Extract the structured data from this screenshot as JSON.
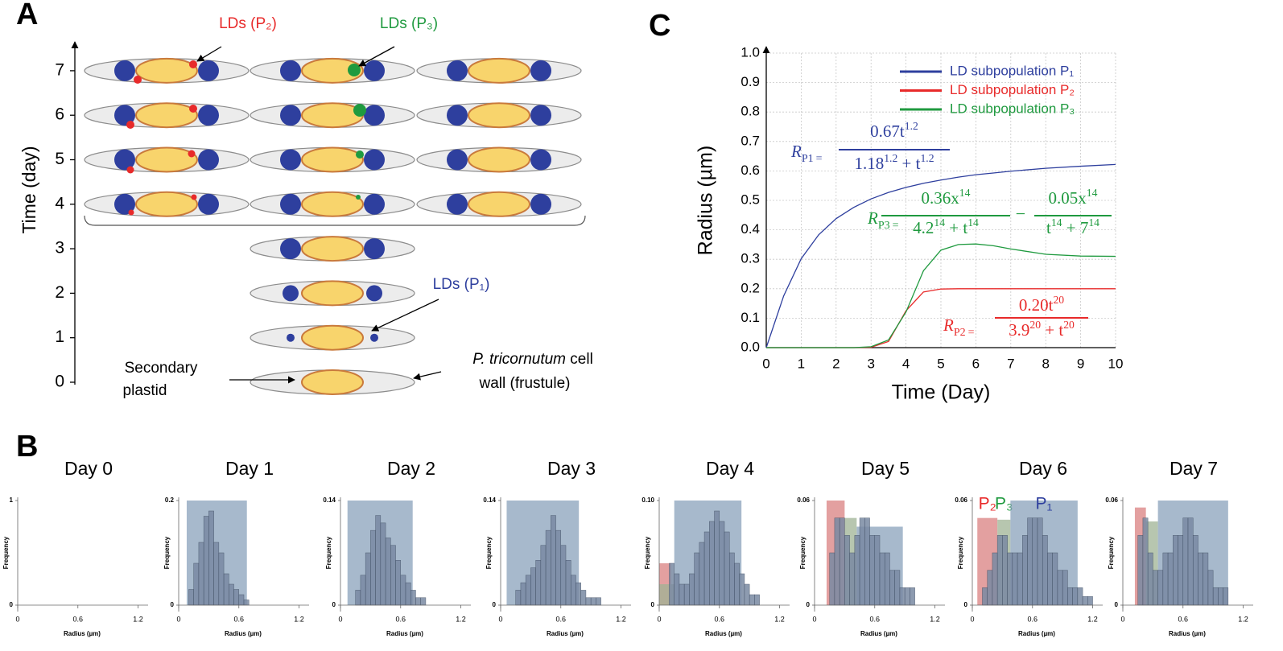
{
  "figure": {
    "panel_labels": [
      "A",
      "B",
      "C"
    ],
    "diagram": {
      "ylabel": "Time (day)",
      "yticks": [
        0,
        1,
        2,
        3,
        4,
        5,
        6,
        7
      ],
      "ld_p2": "LDs (P₂)",
      "ld_p3": "LDs (P₃)",
      "ld_p1": "LDs (P₁)",
      "plastid": [
        "Secondary",
        "plastid"
      ],
      "wall": [
        {
          "italic": "P. tricornutum",
          "text": " cell"
        },
        "wall (frustule)"
      ]
    }
  },
  "chart_data": [
    {
      "type": "line",
      "xlabel": "Time (Day)",
      "ylabel": "Radius (µm)",
      "x": [
        0,
        0.5,
        1,
        1.5,
        2,
        2.5,
        3,
        3.5,
        4,
        4.5,
        5,
        5.5,
        6,
        6.5,
        7,
        8,
        9,
        10
      ],
      "series": [
        {
          "name": "LD subpopulation P₁",
          "color": "#2e3f9e",
          "values": [
            0,
            0.176,
            0.302,
            0.383,
            0.438,
            0.476,
            0.505,
            0.527,
            0.544,
            0.558,
            0.569,
            0.579,
            0.587,
            0.593,
            0.599,
            0.609,
            0.616,
            0.622
          ]
        },
        {
          "name": "LD subpopulation P₂",
          "color": "#e82a2a",
          "values": [
            0,
            0,
            0,
            0,
            0,
            0,
            0.001,
            0.021,
            0.125,
            0.189,
            0.199,
            0.2,
            0.2,
            0.2,
            0.2,
            0.2,
            0.2,
            0.2
          ]
        },
        {
          "name": "LD subpopulation P₃",
          "color": "#1f9a3f",
          "values": [
            0,
            0,
            0,
            0,
            0,
            0,
            0.003,
            0.026,
            0.121,
            0.261,
            0.331,
            0.35,
            0.352,
            0.346,
            0.335,
            0.317,
            0.311,
            0.31
          ]
        }
      ],
      "xlim": [
        0,
        10
      ],
      "ylim": [
        0,
        1
      ],
      "xticks": [
        0,
        1,
        2,
        3,
        4,
        5,
        6,
        7,
        8,
        9,
        10
      ],
      "yticks": [
        {
          "value": 0,
          "label": "0.0"
        },
        0.1,
        0.2,
        0.3,
        0.4,
        0.5,
        0.6,
        0.7,
        0.8,
        0.9,
        {
          "value": 1,
          "label": "1.0"
        }
      ],
      "grid": true,
      "legend": "upper right",
      "annotations": [
        {
          "lhs": "R",
          "sub": "P1",
          "eq": "=",
          "color": "#2e3f9e",
          "fractions": [
            {
              "num": [
                {
                  "text": "0.67t"
                },
                {
                  "sup": "1.2"
                }
              ],
              "den": [
                {
                  "text": "1.18"
                },
                {
                  "sup": "1.2"
                },
                {
                  "text": " + t"
                },
                {
                  "sup": "1.2"
                }
              ]
            }
          ]
        },
        {
          "lhs": "R",
          "sub": "P2",
          "eq": "=",
          "color": "#e82a2a",
          "fractions": [
            {
              "num": [
                {
                  "text": "0.20t"
                },
                {
                  "sup": "20"
                }
              ],
              "den": [
                {
                  "text": "3.9"
                },
                {
                  "sup": "20"
                },
                {
                  "text": " + t"
                },
                {
                  "sup": "20"
                }
              ]
            }
          ]
        },
        {
          "lhs": "R",
          "sub": "P3",
          "eq": "=",
          "color": "#1f9a3f",
          "operator": "−",
          "fractions": [
            {
              "num": [
                {
                  "text": "0.36x"
                },
                {
                  "sup": "14"
                }
              ],
              "den": [
                {
                  "text": "4.2"
                },
                {
                  "sup": "14"
                },
                {
                  "text": " + t"
                },
                {
                  "sup": "14"
                }
              ]
            },
            {
              "num": [
                {
                  "text": "0.05x"
                },
                {
                  "sup": "14"
                }
              ],
              "den": [
                {
                  "text": "t"
                },
                {
                  "sup": "14"
                },
                {
                  "text": " + 7"
                },
                {
                  "sup": "14"
                }
              ]
            }
          ]
        }
      ]
    },
    {
      "type": "histogram",
      "title": "Day 0",
      "xlabel": "Radius (µm)",
      "ylabel": "Frequency",
      "color": "#7a8aa3",
      "xlim": [
        0,
        1.3
      ],
      "ylim": [
        0,
        1
      ],
      "xticks": [
        0,
        0.6,
        1.2
      ],
      "yticks": [
        0,
        1
      ]
    },
    {
      "type": "histogram",
      "title": "Day 1",
      "xlabel": "Radius (µm)",
      "ylabel": "Frequency",
      "color": "#7a8aa3",
      "bins": [
        0.1,
        0.15,
        0.2,
        0.25,
        0.3,
        0.35,
        0.4,
        0.45,
        0.5,
        0.55,
        0.6,
        0.65,
        0.7
      ],
      "values": [
        0.03,
        0.08,
        0.12,
        0.17,
        0.18,
        0.12,
        0.1,
        0.06,
        0.04,
        0.03,
        0.02,
        0.01
      ],
      "xlim": [
        0,
        1.3
      ],
      "ylim": [
        0,
        0.2
      ],
      "xticks": [
        0,
        0.6,
        1.2
      ],
      "yticks": [
        0,
        0.2
      ],
      "regions": [
        {
          "color": "#8aa1bb",
          "range": [
            0.08,
            0.68
          ],
          "top": 0.2
        }
      ]
    },
    {
      "type": "histogram",
      "title": "Day 2",
      "xlabel": "Radius (µm)",
      "ylabel": "Frequency",
      "color": "#7a8aa3",
      "bins": [
        0.15,
        0.2,
        0.25,
        0.3,
        0.35,
        0.4,
        0.45,
        0.5,
        0.55,
        0.6,
        0.65,
        0.7,
        0.75,
        0.8,
        0.85
      ],
      "values": [
        0.02,
        0.04,
        0.07,
        0.1,
        0.12,
        0.11,
        0.09,
        0.08,
        0.06,
        0.04,
        0.03,
        0.02,
        0.01,
        0.01
      ],
      "xlim": [
        0,
        1.3
      ],
      "ylim": [
        0,
        0.14
      ],
      "xticks": [
        0,
        0.6,
        1.2
      ],
      "yticks": [
        0,
        0.14
      ],
      "regions": [
        {
          "color": "#8aa1bb",
          "range": [
            0.07,
            0.72
          ],
          "top": 0.14
        }
      ]
    },
    {
      "type": "histogram",
      "title": "Day 3",
      "xlabel": "Radius (µm)",
      "ylabel": "Frequency",
      "color": "#7a8aa3",
      "bins": [
        0.15,
        0.2,
        0.25,
        0.3,
        0.35,
        0.4,
        0.45,
        0.5,
        0.55,
        0.6,
        0.65,
        0.7,
        0.75,
        0.8,
        0.85,
        0.9,
        0.95,
        1.0
      ],
      "values": [
        0.02,
        0.03,
        0.04,
        0.05,
        0.06,
        0.08,
        0.1,
        0.12,
        0.1,
        0.08,
        0.06,
        0.04,
        0.03,
        0.02,
        0.01,
        0.01,
        0.01
      ],
      "xlim": [
        0,
        1.3
      ],
      "ylim": [
        0,
        0.14
      ],
      "xticks": [
        0,
        0.6,
        1.2
      ],
      "yticks": [
        0,
        0.14
      ],
      "regions": [
        {
          "color": "#8aa1bb",
          "range": [
            0.06,
            0.78
          ],
          "top": 0.14
        }
      ]
    },
    {
      "type": "histogram",
      "title": "Day 4",
      "xlabel": "Radius (µm)",
      "ylabel": "Frequency",
      "color": "#7a8aa3",
      "bins": [
        0.1,
        0.15,
        0.2,
        0.25,
        0.3,
        0.35,
        0.4,
        0.45,
        0.5,
        0.55,
        0.6,
        0.65,
        0.7,
        0.75,
        0.8,
        0.85,
        0.9,
        0.95,
        1.0
      ],
      "values": [
        0.04,
        0.03,
        0.02,
        0.02,
        0.03,
        0.05,
        0.06,
        0.07,
        0.08,
        0.09,
        0.08,
        0.07,
        0.05,
        0.04,
        0.03,
        0.02,
        0.01,
        0.01
      ],
      "xlim": [
        0,
        1.3
      ],
      "ylim": [
        0,
        0.1
      ],
      "xticks": [
        0,
        0.6,
        1.2
      ],
      "yticks": [
        0,
        {
          "value": 0.1,
          "label": "0.10"
        }
      ],
      "regions": [
        {
          "color": "#d98080",
          "range": [
            0,
            0.12
          ],
          "top": 0.04
        },
        {
          "color": "#9fb394",
          "range": [
            0,
            0.15
          ],
          "top": 0.02
        },
        {
          "color": "#8aa1bb",
          "range": [
            0.15,
            0.82
          ],
          "top": 0.1
        }
      ]
    },
    {
      "type": "histogram",
      "title": "Day 5",
      "xlabel": "Radius (µm)",
      "ylabel": "Frequency",
      "color": "#7a8aa3",
      "bins": [
        0.15,
        0.2,
        0.25,
        0.3,
        0.35,
        0.4,
        0.45,
        0.5,
        0.55,
        0.6,
        0.65,
        0.7,
        0.75,
        0.8,
        0.85,
        0.9,
        0.95,
        1.0
      ],
      "values": [
        0.03,
        0.05,
        0.05,
        0.04,
        0.03,
        0.04,
        0.05,
        0.05,
        0.04,
        0.04,
        0.03,
        0.03,
        0.02,
        0.02,
        0.01,
        0.01,
        0.01
      ],
      "xlim": [
        0,
        1.3
      ],
      "ylim": [
        0,
        0.06
      ],
      "xticks": [
        0,
        0.6,
        1.2
      ],
      "yticks": [
        0,
        0.06
      ],
      "regions": [
        {
          "color": "#d98080",
          "range": [
            0.12,
            0.3
          ],
          "top": 0.06
        },
        {
          "color": "#9fb394",
          "range": [
            0.3,
            0.42
          ],
          "top": 0.05
        },
        {
          "color": "#8aa1bb",
          "range": [
            0.42,
            0.88
          ],
          "top": 0.045
        }
      ]
    },
    {
      "type": "histogram",
      "title": "Day 6",
      "xlabel": "Radius (µm)",
      "ylabel": "Frequency",
      "color": "#7a8aa3",
      "bins": [
        0.1,
        0.15,
        0.2,
        0.25,
        0.3,
        0.35,
        0.4,
        0.45,
        0.5,
        0.55,
        0.6,
        0.65,
        0.7,
        0.75,
        0.8,
        0.85,
        0.9,
        0.95,
        1.0,
        1.05,
        1.1,
        1.15,
        1.2
      ],
      "values": [
        0.01,
        0.02,
        0.03,
        0.04,
        0.04,
        0.03,
        0.03,
        0.03,
        0.04,
        0.05,
        0.05,
        0.05,
        0.04,
        0.03,
        0.03,
        0.02,
        0.02,
        0.01,
        0.01,
        0.01,
        0.005,
        0.005
      ],
      "xlim": [
        0,
        1.3
      ],
      "ylim": [
        0,
        0.06
      ],
      "xticks": [
        0,
        0.6,
        1.2
      ],
      "yticks": [
        0,
        0.06
      ],
      "regions": [
        {
          "color": "#d98080",
          "range": [
            0.05,
            0.25
          ],
          "top": 0.05,
          "label": "P₂",
          "label_color": "#e82a2a"
        },
        {
          "color": "#9fb394",
          "range": [
            0.25,
            0.38
          ],
          "top": 0.049,
          "label": "P₃",
          "label_color": "#1f9a3f"
        },
        {
          "color": "#8aa1bb",
          "range": [
            0.38,
            1.05
          ],
          "top": 0.06,
          "label": "P₁",
          "label_color": "#2e3f9e"
        }
      ]
    },
    {
      "type": "histogram",
      "title": "Day 7",
      "xlabel": "Radius (µm)",
      "ylabel": "Frequency",
      "color": "#7a8aa3",
      "bins": [
        0.15,
        0.2,
        0.25,
        0.3,
        0.35,
        0.4,
        0.45,
        0.5,
        0.55,
        0.6,
        0.65,
        0.7,
        0.75,
        0.8,
        0.85,
        0.9,
        0.95,
        1.0,
        1.05
      ],
      "values": [
        0.04,
        0.05,
        0.03,
        0.02,
        0.02,
        0.03,
        0.03,
        0.04,
        0.04,
        0.05,
        0.05,
        0.04,
        0.03,
        0.03,
        0.02,
        0.01,
        0.01,
        0.01
      ],
      "xlim": [
        0,
        1.3
      ],
      "ylim": [
        0,
        0.06
      ],
      "xticks": [
        0,
        0.6,
        1.2
      ],
      "yticks": [
        0,
        0.06
      ],
      "regions": [
        {
          "color": "#d98080",
          "range": [
            0.12,
            0.23
          ],
          "top": 0.056
        },
        {
          "color": "#9fb394",
          "range": [
            0.23,
            0.35
          ],
          "top": 0.048
        },
        {
          "color": "#8aa1bb",
          "range": [
            0.35,
            1.05
          ],
          "top": 0.06
        }
      ]
    }
  ]
}
